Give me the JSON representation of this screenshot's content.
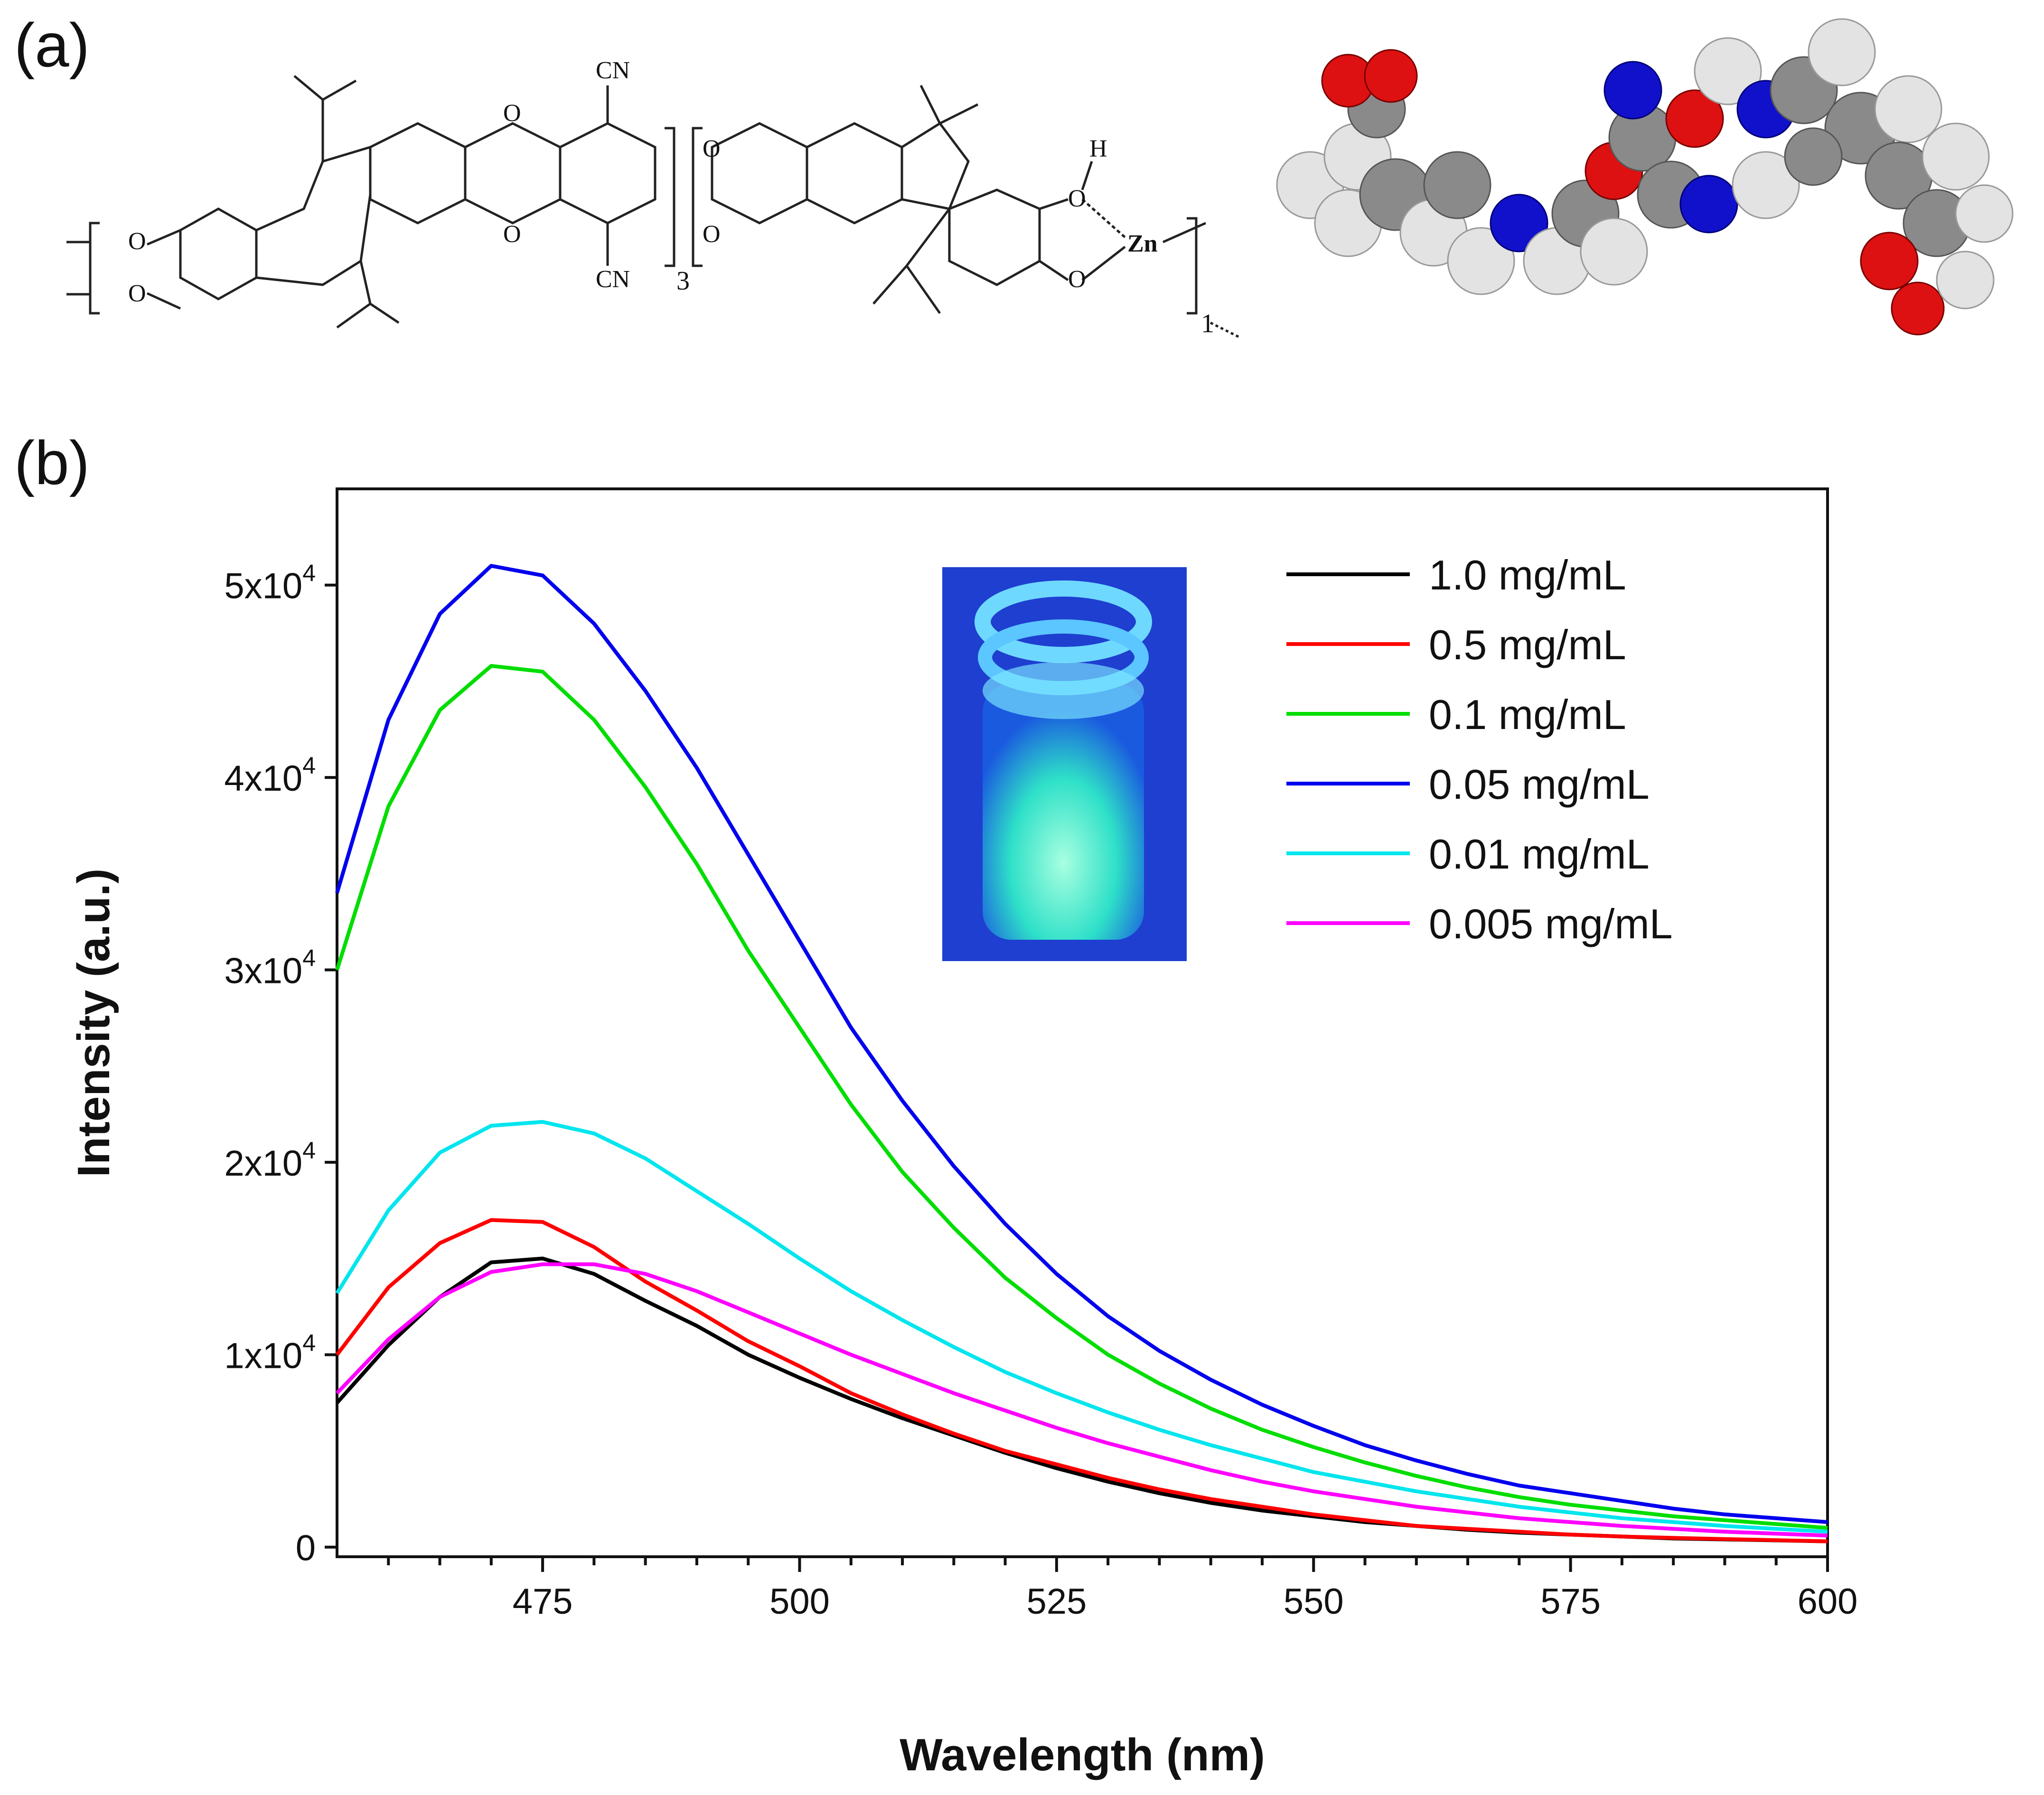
{
  "panels": {
    "a_label": "(a)",
    "b_label": "(b)"
  },
  "structure": {
    "atom_o": "O",
    "cn_top": "CN",
    "cn_bottom": "CN",
    "repeat_3": "3",
    "repeat_1": "1",
    "h_label": "H",
    "zn_label": "Zn"
  },
  "chart_data": {
    "type": "line",
    "xlabel": "Wavelength (nm)",
    "ylabel": "Intensity (a.u.)",
    "xlim": [
      455,
      600
    ],
    "ylim": [
      -500,
      55000
    ],
    "xticks": [
      475,
      500,
      525,
      550,
      575,
      600
    ],
    "yticks": [
      {
        "value": 0,
        "base": "0",
        "exp": ""
      },
      {
        "value": 10000,
        "base": "1x10",
        "exp": "4"
      },
      {
        "value": 20000,
        "base": "2x10",
        "exp": "4"
      },
      {
        "value": 30000,
        "base": "3x10",
        "exp": "4"
      },
      {
        "value": 40000,
        "base": "4x10",
        "exp": "4"
      },
      {
        "value": 50000,
        "base": "5x10",
        "exp": "4"
      }
    ],
    "legend_placement": "top-right",
    "series": [
      {
        "name": "1.0 mg/mL",
        "color": "#000000",
        "x": [
          455,
          460,
          465,
          470,
          475,
          480,
          485,
          490,
          495,
          500,
          505,
          510,
          515,
          520,
          525,
          530,
          535,
          540,
          545,
          550,
          555,
          560,
          565,
          570,
          575,
          580,
          585,
          590,
          595,
          600
        ],
        "y": [
          7500,
          10500,
          13000,
          14800,
          15000,
          14200,
          12800,
          11500,
          10000,
          8800,
          7700,
          6700,
          5800,
          4900,
          4100,
          3400,
          2800,
          2300,
          1900,
          1600,
          1300,
          1100,
          900,
          750,
          650,
          550,
          450,
          400,
          350,
          300
        ]
      },
      {
        "name": "0.5 mg/mL",
        "color": "#ff0000",
        "x": [
          455,
          460,
          465,
          470,
          475,
          480,
          485,
          490,
          495,
          500,
          505,
          510,
          515,
          520,
          525,
          530,
          535,
          540,
          545,
          550,
          555,
          560,
          565,
          570,
          575,
          580,
          585,
          590,
          595,
          600
        ],
        "y": [
          10000,
          13500,
          15800,
          17000,
          16900,
          15600,
          13800,
          12300,
          10700,
          9400,
          8000,
          6900,
          5900,
          5000,
          4300,
          3600,
          3000,
          2500,
          2100,
          1700,
          1400,
          1100,
          950,
          800,
          650,
          550,
          480,
          420,
          360,
          300
        ]
      },
      {
        "name": "0.1 mg/mL",
        "color": "#00dd00",
        "x": [
          455,
          460,
          465,
          470,
          475,
          480,
          485,
          490,
          495,
          500,
          505,
          510,
          515,
          520,
          525,
          530,
          535,
          540,
          545,
          550,
          555,
          560,
          565,
          570,
          575,
          580,
          585,
          590,
          595,
          600
        ],
        "y": [
          30000,
          38500,
          43500,
          45800,
          45500,
          43000,
          39500,
          35500,
          31000,
          27000,
          23000,
          19500,
          16600,
          14000,
          11900,
          10000,
          8500,
          7200,
          6100,
          5200,
          4400,
          3700,
          3100,
          2600,
          2200,
          1900,
          1600,
          1400,
          1200,
          1000
        ]
      },
      {
        "name": "0.05 mg/mL",
        "color": "#0000ee",
        "x": [
          455,
          460,
          465,
          470,
          475,
          480,
          485,
          490,
          495,
          500,
          505,
          510,
          515,
          520,
          525,
          530,
          535,
          540,
          545,
          550,
          555,
          560,
          565,
          570,
          575,
          580,
          585,
          590,
          595,
          600
        ],
        "y": [
          34000,
          43000,
          48500,
          51000,
          50500,
          48000,
          44500,
          40500,
          36000,
          31500,
          27000,
          23200,
          19800,
          16800,
          14200,
          12000,
          10200,
          8700,
          7400,
          6300,
          5300,
          4500,
          3800,
          3200,
          2800,
          2400,
          2000,
          1700,
          1500,
          1300
        ]
      },
      {
        "name": "0.01 mg/mL",
        "color": "#00e5ee",
        "x": [
          455,
          460,
          465,
          470,
          475,
          480,
          485,
          490,
          495,
          500,
          505,
          510,
          515,
          520,
          525,
          530,
          535,
          540,
          545,
          550,
          555,
          560,
          565,
          570,
          575,
          580,
          585,
          590,
          595,
          600
        ],
        "y": [
          13200,
          17500,
          20500,
          21900,
          22100,
          21500,
          20200,
          18500,
          16800,
          15000,
          13300,
          11800,
          10400,
          9100,
          8000,
          7000,
          6100,
          5300,
          4600,
          3900,
          3400,
          2900,
          2500,
          2100,
          1800,
          1500,
          1300,
          1100,
          950,
          800
        ]
      },
      {
        "name": "0.005 mg/mL",
        "color": "#ff00ff",
        "x": [
          455,
          460,
          465,
          470,
          475,
          480,
          485,
          490,
          495,
          500,
          505,
          510,
          515,
          520,
          525,
          530,
          535,
          540,
          545,
          550,
          555,
          560,
          565,
          570,
          575,
          580,
          585,
          590,
          595,
          600
        ],
        "y": [
          8000,
          10800,
          13000,
          14300,
          14700,
          14700,
          14200,
          13300,
          12200,
          11100,
          10000,
          9000,
          8000,
          7100,
          6200,
          5400,
          4700,
          4000,
          3400,
          2900,
          2500,
          2100,
          1800,
          1500,
          1300,
          1100,
          950,
          800,
          700,
          600
        ]
      }
    ]
  }
}
